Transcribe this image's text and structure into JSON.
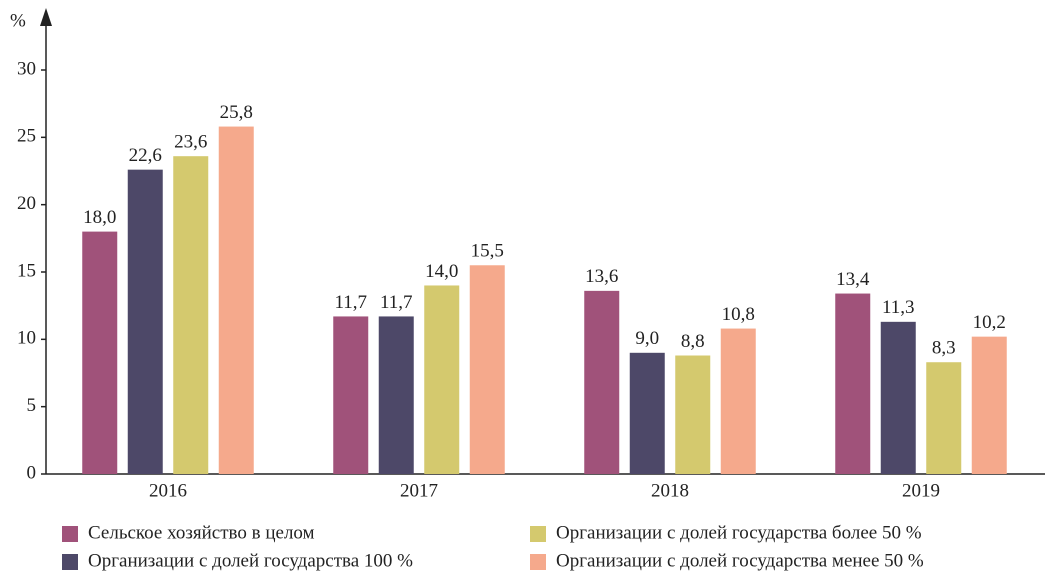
{
  "chart_data": {
    "type": "bar",
    "y_label": "%",
    "categories": [
      "2016",
      "2017",
      "2018",
      "2019"
    ],
    "series": [
      {
        "name": "Сельское хозяйство в целом",
        "color": "#a0527a",
        "values": [
          18.0,
          11.7,
          13.6,
          13.4
        ],
        "value_labels": [
          "18,0",
          "11,7",
          "13,6",
          "13,4"
        ]
      },
      {
        "name": "Организации с долей государства 100 %",
        "color": "#4d4868",
        "values": [
          22.6,
          11.7,
          9.0,
          11.3
        ],
        "value_labels": [
          "22,6",
          "11,7",
          "9,0",
          "11,3"
        ]
      },
      {
        "name": "Организации с долей государства более 50 %",
        "color": "#d4c96e",
        "values": [
          23.6,
          14.0,
          8.8,
          8.3
        ],
        "value_labels": [
          "23,6",
          "14,0",
          "8,8",
          "8,3"
        ]
      },
      {
        "name": "Организации с долей государства менее 50 %",
        "color": "#f5a98c",
        "values": [
          25.8,
          15.5,
          10.8,
          10.2
        ],
        "value_labels": [
          "25,8",
          "15,5",
          "10,8",
          "10,2"
        ]
      }
    ],
    "ylim": [
      0,
      33
    ],
    "yticks": [
      0,
      5,
      10,
      15,
      20,
      25,
      30
    ],
    "grid": false
  }
}
